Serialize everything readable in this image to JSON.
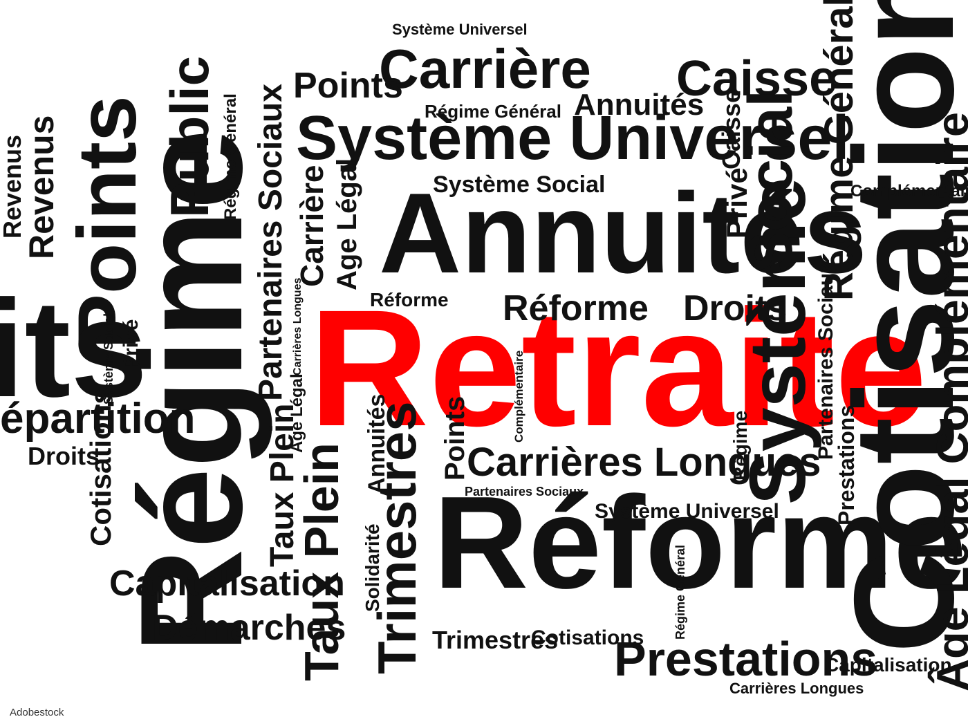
{
  "credit": "Adobestock",
  "colors": {
    "ink": "#111111",
    "accent": "#ff0000",
    "background": "#ffffff"
  },
  "words": [
    "Retraite",
    "Réforme",
    "Régime",
    "Annuités",
    "Cotisations",
    "Système Universel",
    "Carrière",
    "Caisse",
    "Points",
    "Points",
    "Public",
    "Revenus",
    "Revenus",
    "its",
    "Trimestres",
    "Annuités",
    "Système Social",
    "Régime Général",
    "Partenaires Sociaux",
    "Carrière",
    "Age Légal",
    "Réforme",
    "Réforme",
    "Droits",
    "Caisse",
    "Privé",
    "Social",
    "Complémentaire",
    "Régime Général",
    "Système",
    "Partenaires Sociaux",
    "Régime",
    "Prestations",
    "Âge Légal Complémentaire",
    "Système Social",
    "Privé",
    "Carrières Longues",
    "épartition",
    "Droits",
    "Cotisations",
    "Capitalisation",
    "Démarches",
    "Taux Plein",
    "Taux Plein",
    "Age Légal",
    "Carrières Longues",
    "Complémentaire",
    "Solidarité",
    "Annuités",
    "Trimestres",
    "Points",
    "Carrières Longues",
    "Partenaires Sociaux",
    "Système Universel",
    "Régime Général",
    "Trimestres",
    "Cotisations",
    "Prestations",
    "Capitalisation",
    "Carrières Longues",
    "Système Universel"
  ]
}
